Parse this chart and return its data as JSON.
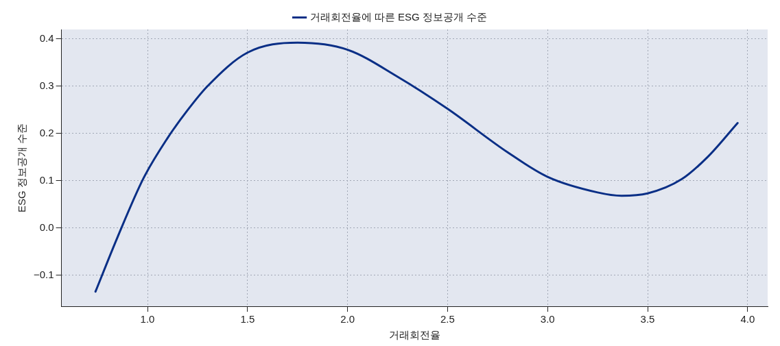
{
  "chart_data": {
    "type": "line",
    "xlabel": "거래회전율",
    "ylabel": "ESG 정보공개 수준",
    "legend": "top",
    "grid": true,
    "marker": "none",
    "line_style": "solid",
    "xlim": [
      0.57,
      4.1
    ],
    "ylim": [
      -0.166,
      0.42
    ],
    "xticks": [
      {
        "value": 1,
        "label": "1.0"
      },
      {
        "value": 1.5,
        "label": "1.5"
      },
      {
        "value": 2,
        "label": "2.0"
      },
      {
        "value": 2.5,
        "label": "2.5"
      },
      {
        "value": 3,
        "label": "3.0"
      },
      {
        "value": 3.5,
        "label": "3.5"
      },
      {
        "value": 4,
        "label": "4.0"
      }
    ],
    "yticks": [
      {
        "value": -0.1,
        "label": "−0.1"
      },
      {
        "value": 0,
        "label": "0.0"
      },
      {
        "value": 0.1,
        "label": "0.1"
      },
      {
        "value": 0.2,
        "label": "0.2"
      },
      {
        "value": 0.3,
        "label": "0.3"
      },
      {
        "value": 0.4,
        "label": "0.4"
      }
    ],
    "series": [
      {
        "name": "거래회전율에 따른 ESG 정보공개 수준",
        "color": "#0a2f86",
        "x": [
          0.74,
          0.85,
          0.98,
          1.1,
          1.2,
          1.3,
          1.5,
          1.75,
          2.0,
          2.25,
          2.5,
          2.8,
          3.0,
          3.25,
          3.37,
          3.5,
          3.67,
          3.8,
          3.95
        ],
        "values": [
          -0.135,
          -0.02,
          0.105,
          0.19,
          0.249,
          0.3,
          0.371,
          0.392,
          0.377,
          0.32,
          0.252,
          0.16,
          0.108,
          0.075,
          0.068,
          0.073,
          0.103,
          0.15,
          0.222
        ]
      }
    ]
  }
}
